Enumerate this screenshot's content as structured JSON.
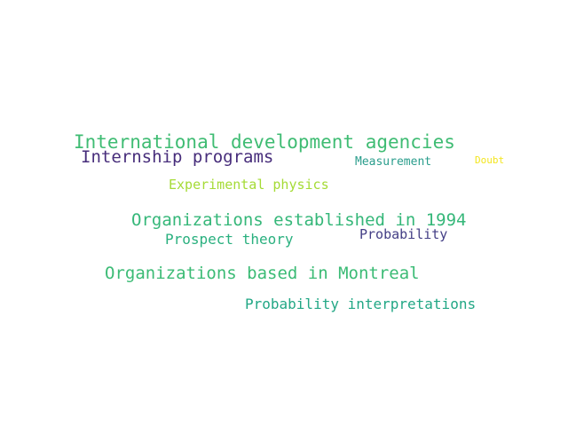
{
  "words": [
    {
      "text": "International development agencies",
      "color": "#3fbc73"
    },
    {
      "text": "Internship programs",
      "color": "#472d7b"
    },
    {
      "text": "Measurement",
      "color": "#2a9d8c"
    },
    {
      "text": "Doubt",
      "color": "#f3e51e"
    },
    {
      "text": "Experimental physics",
      "color": "#a5db36"
    },
    {
      "text": "Organizations established in 1994",
      "color": "#35b779"
    },
    {
      "text": "Prospect theory",
      "color": "#2ab07f"
    },
    {
      "text": "Probability",
      "color": "#433e85"
    },
    {
      "text": "Organizations based in Montreal",
      "color": "#3bbb75"
    },
    {
      "text": "Probability interpretations",
      "color": "#22a785"
    }
  ]
}
